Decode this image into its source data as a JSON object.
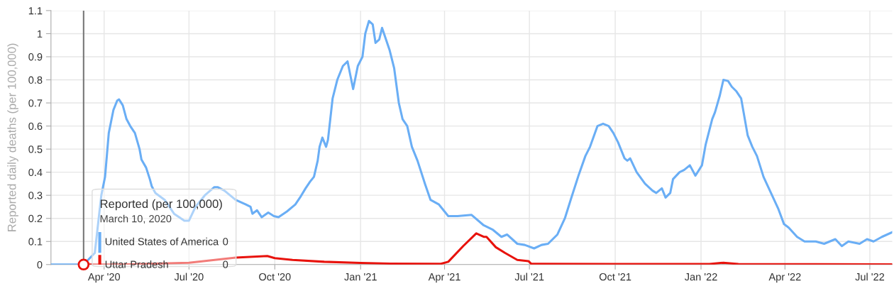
{
  "chart_data": {
    "type": "line",
    "ylabel": "Reported daily deaths (per 100,000)",
    "legend_title": "Reported (per 100,000)",
    "legend": "bottom left",
    "grid": true,
    "marker": "none",
    "line_style": "solid",
    "xlim": [
      "2020-02-04",
      "2022-07-25"
    ],
    "xticks": [
      {
        "value": "2020-04-01",
        "label": "Apr '20"
      },
      {
        "value": "2020-07-01",
        "label": "Jul '20"
      },
      {
        "value": "2020-10-01",
        "label": "Oct '20"
      },
      {
        "value": "2021-01-01",
        "label": "Jan '21"
      },
      {
        "value": "2021-04-01",
        "label": "Apr '21"
      },
      {
        "value": "2021-07-01",
        "label": "Jul '21"
      },
      {
        "value": "2021-10-01",
        "label": "Oct '21"
      },
      {
        "value": "2022-01-01",
        "label": "Jan '22"
      },
      {
        "value": "2022-04-01",
        "label": "Apr '22"
      },
      {
        "value": "2022-07-01",
        "label": "Jul '22"
      }
    ],
    "ylim": [
      0,
      1.1
    ],
    "yticks": [
      0,
      0.1,
      0.2,
      0.3,
      0.4,
      0.5,
      0.6,
      0.7,
      0.8,
      0.9,
      1,
      1.1
    ],
    "ref_lines": [
      {
        "axis": "x",
        "value": "2020-03-10",
        "label": null,
        "color": "#777777"
      }
    ],
    "annotations": [
      "March 10, 2020",
      "0",
      "0"
    ],
    "series": [
      {
        "name": "United States of America",
        "color": "#6aaef5",
        "x": [
          "2020-02-04",
          "2020-03-01",
          "2020-03-10",
          "2020-03-22",
          "2020-03-29",
          "2020-04-02",
          "2020-04-06",
          "2020-04-11",
          "2020-04-15",
          "2020-04-17",
          "2020-04-21",
          "2020-04-25",
          "2020-04-29",
          "2020-05-04",
          "2020-05-09",
          "2020-05-11",
          "2020-05-16",
          "2020-05-20",
          "2020-05-22",
          "2020-05-26",
          "2020-06-05",
          "2020-06-15",
          "2020-06-26",
          "2020-07-01",
          "2020-07-08",
          "2020-07-18",
          "2020-07-28",
          "2020-08-01",
          "2020-08-08",
          "2020-08-20",
          "2020-08-31",
          "2020-09-05",
          "2020-09-07",
          "2020-09-12",
          "2020-09-17",
          "2020-09-24",
          "2020-09-30",
          "2020-10-05",
          "2020-10-14",
          "2020-10-23",
          "2020-10-28",
          "2020-11-03",
          "2020-11-08",
          "2020-11-12",
          "2020-11-16",
          "2020-11-18",
          "2020-11-21",
          "2020-11-25",
          "2020-11-27",
          "2020-12-02",
          "2020-12-07",
          "2020-12-13",
          "2020-12-18",
          "2020-12-24",
          "2020-12-29",
          "2021-01-03",
          "2021-01-06",
          "2021-01-10",
          "2021-01-14",
          "2021-01-17",
          "2021-01-21",
          "2021-01-24",
          "2021-02-01",
          "2021-02-06",
          "2021-02-11",
          "2021-02-15",
          "2021-02-20",
          "2021-02-25",
          "2021-03-03",
          "2021-03-11",
          "2021-03-17",
          "2021-03-26",
          "2021-04-05",
          "2021-04-15",
          "2021-04-30",
          "2021-05-13",
          "2021-05-23",
          "2021-06-01",
          "2021-06-07",
          "2021-06-18",
          "2021-06-26",
          "2021-07-06",
          "2021-07-14",
          "2021-07-21",
          "2021-07-31",
          "2021-08-08",
          "2021-08-15",
          "2021-08-23",
          "2021-08-30",
          "2021-09-04",
          "2021-09-12",
          "2021-09-18",
          "2021-09-24",
          "2021-09-29",
          "2021-10-04",
          "2021-10-11",
          "2021-10-14",
          "2021-10-17",
          "2021-10-24",
          "2021-11-02",
          "2021-11-10",
          "2021-11-14",
          "2021-11-20",
          "2021-11-24",
          "2021-11-29",
          "2021-12-02",
          "2021-12-09",
          "2021-12-14",
          "2021-12-20",
          "2021-12-26",
          "2022-01-02",
          "2022-01-06",
          "2022-01-13",
          "2022-01-16",
          "2022-01-21",
          "2022-01-25",
          "2022-01-30",
          "2022-02-03",
          "2022-02-08",
          "2022-02-13",
          "2022-02-20",
          "2022-02-25",
          "2022-03-02",
          "2022-03-09",
          "2022-03-17",
          "2022-03-25",
          "2022-03-31",
          "2022-04-05",
          "2022-04-14",
          "2022-04-22",
          "2022-05-04",
          "2022-05-13",
          "2022-05-25",
          "2022-06-01",
          "2022-06-08",
          "2022-06-20",
          "2022-06-28",
          "2022-07-05",
          "2022-07-14",
          "2022-07-25"
        ],
        "values": [
          0,
          0,
          0,
          0.05,
          0.3,
          0.38,
          0.57,
          0.67,
          0.71,
          0.715,
          0.69,
          0.63,
          0.6,
          0.57,
          0.5,
          0.455,
          0.42,
          0.37,
          0.34,
          0.31,
          0.28,
          0.22,
          0.19,
          0.19,
          0.25,
          0.3,
          0.335,
          0.335,
          0.32,
          0.28,
          0.26,
          0.25,
          0.22,
          0.235,
          0.205,
          0.225,
          0.21,
          0.205,
          0.23,
          0.26,
          0.29,
          0.33,
          0.36,
          0.38,
          0.45,
          0.51,
          0.55,
          0.51,
          0.54,
          0.72,
          0.8,
          0.86,
          0.88,
          0.76,
          0.86,
          0.9,
          1.0,
          1.055,
          1.04,
          0.96,
          0.975,
          1.025,
          0.93,
          0.85,
          0.7,
          0.63,
          0.6,
          0.51,
          0.45,
          0.35,
          0.28,
          0.26,
          0.21,
          0.21,
          0.215,
          0.17,
          0.15,
          0.12,
          0.13,
          0.09,
          0.085,
          0.07,
          0.085,
          0.09,
          0.13,
          0.2,
          0.29,
          0.39,
          0.47,
          0.51,
          0.6,
          0.61,
          0.6,
          0.57,
          0.53,
          0.46,
          0.45,
          0.46,
          0.4,
          0.35,
          0.32,
          0.31,
          0.33,
          0.29,
          0.31,
          0.37,
          0.4,
          0.41,
          0.43,
          0.385,
          0.43,
          0.52,
          0.63,
          0.66,
          0.73,
          0.8,
          0.795,
          0.77,
          0.75,
          0.72,
          0.56,
          0.51,
          0.47,
          0.38,
          0.31,
          0.24,
          0.175,
          0.16,
          0.12,
          0.1,
          0.1,
          0.09,
          0.11,
          0.08,
          0.1,
          0.09,
          0.11,
          0.1,
          0.12,
          0.14
        ]
      },
      {
        "name": "Uttar Pradesh",
        "color": "#e8120c",
        "x": [
          "2020-03-10",
          "2020-04-20",
          "2020-07-01",
          "2020-08-20",
          "2020-09-23",
          "2020-10-01",
          "2020-10-20",
          "2020-11-23",
          "2021-01-01",
          "2021-02-02",
          "2021-03-28",
          "2021-04-05",
          "2021-04-21",
          "2021-05-05",
          "2021-05-13",
          "2021-05-16",
          "2021-05-26",
          "2021-06-05",
          "2021-06-18",
          "2021-06-30",
          "2021-07-03",
          "2021-10-01",
          "2022-01-10",
          "2022-01-25",
          "2022-02-10",
          "2022-07-25"
        ],
        "values": [
          0,
          0,
          0.008,
          0.03,
          0.037,
          0.028,
          0.02,
          0.012,
          0.007,
          0.004,
          0.003,
          0.012,
          0.08,
          0.135,
          0.12,
          0.12,
          0.075,
          0.05,
          0.02,
          0.015,
          0.003,
          0.002,
          0.002,
          0.008,
          0.002,
          0.001
        ]
      }
    ]
  }
}
